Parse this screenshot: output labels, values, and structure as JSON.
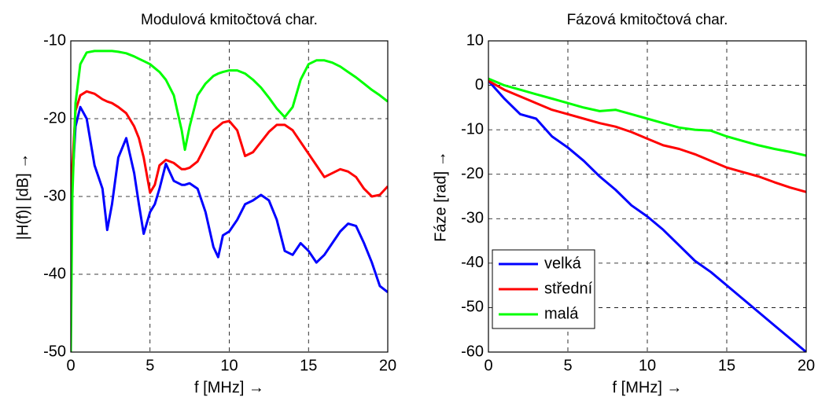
{
  "chart_data": [
    {
      "type": "line",
      "title": "Modulová kmitočtová char.",
      "xlabel": "f [MHz] →",
      "ylabel": "|H(f)| [dB] →",
      "x": [
        0,
        0.1,
        0.3,
        0.6,
        1,
        1.5,
        2,
        2.3,
        2.6,
        3,
        3.5,
        4,
        4.3,
        4.6,
        5,
        5.3,
        5.6,
        6,
        6.5,
        7,
        7.2,
        7.5,
        8,
        8.5,
        9,
        9.3,
        9.6,
        10,
        10.5,
        11,
        11.5,
        12,
        12.5,
        13,
        13.5,
        14,
        14.5,
        15,
        15.5,
        16,
        16.5,
        17,
        17.5,
        18,
        18.5,
        19,
        19.5,
        20
      ],
      "series": [
        {
          "color": "#0000ff",
          "values": [
            -35,
            -28,
            -21,
            -18.5,
            -20,
            -26,
            -29,
            -34.3,
            -31,
            -25,
            -22.5,
            -27,
            -31,
            -34.8,
            -32,
            -31,
            -29,
            -25.8,
            -28,
            -28.5,
            -28.5,
            -28.3,
            -29,
            -32,
            -36.5,
            -37.8,
            -35,
            -34.5,
            -33,
            -31,
            -30.5,
            -29.8,
            -30.5,
            -33,
            -37,
            -37.5,
            -36,
            -37,
            -38.5,
            -37.5,
            -36,
            -34.5,
            -33.5,
            -33.8,
            -36,
            -38.5,
            -41.5,
            -42.3
          ]
        },
        {
          "color": "#ff0000",
          "values": [
            -33,
            -26,
            -19,
            -17,
            -16.5,
            -16.8,
            -17.5,
            -17.8,
            -18,
            -18.5,
            -19.3,
            -21,
            -22.5,
            -25,
            -29.5,
            -28.5,
            -26,
            -25.3,
            -25.7,
            -26.5,
            -26.5,
            -26.3,
            -25.5,
            -23.5,
            -21.5,
            -21,
            -20.5,
            -20.3,
            -21.5,
            -24.8,
            -24.3,
            -23,
            -21.7,
            -20.8,
            -20.8,
            -21.5,
            -23,
            -24.5,
            -26,
            -27.5,
            -27,
            -26.5,
            -26.8,
            -27.5,
            -29,
            -30,
            -29.8,
            -28.7
          ]
        },
        {
          "color": "#00ff00",
          "values": [
            -50,
            -30,
            -18,
            -13,
            -11.5,
            -11.3,
            -11.3,
            -11.3,
            -11.3,
            -11.4,
            -11.6,
            -12,
            -12.3,
            -12.6,
            -13,
            -13.5,
            -14,
            -15,
            -17,
            -21.5,
            -24,
            -21,
            -17,
            -15.5,
            -14.5,
            -14.2,
            -14,
            -13.8,
            -13.8,
            -14.2,
            -15,
            -16,
            -17.3,
            -18.7,
            -19.8,
            -18.5,
            -15,
            -13,
            -12.5,
            -12.5,
            -12.8,
            -13.3,
            -14,
            -14.7,
            -15.5,
            -16.3,
            -17,
            -17.8
          ]
        }
      ],
      "xlim": [
        0,
        20
      ],
      "xticks": [
        0,
        5,
        10,
        15,
        20
      ],
      "ylim": [
        -50,
        -10
      ],
      "yticks": [
        -50,
        -40,
        -30,
        -20,
        -10
      ],
      "grid": true
    },
    {
      "type": "line",
      "title": "Fázová kmitočtová char.",
      "xlabel": "f [MHz] →",
      "ylabel": "Fáze [rad] →",
      "x": [
        0,
        1,
        2,
        3,
        4,
        5,
        6,
        7,
        8,
        9,
        10,
        11,
        12,
        13,
        14,
        15,
        16,
        17,
        18,
        19,
        20
      ],
      "series": [
        {
          "name": "velká",
          "color": "#0000ff",
          "values": [
            1,
            -3,
            -6.5,
            -7.5,
            -11.5,
            -14,
            -17,
            -20.5,
            -23.5,
            -27,
            -29.5,
            -32.5,
            -36,
            -39.5,
            -42,
            -45,
            -48,
            -51,
            -54,
            -57,
            -60
          ]
        },
        {
          "name": "střední",
          "color": "#ff0000",
          "values": [
            1,
            -1,
            -2.5,
            -4,
            -5.5,
            -6.5,
            -7.5,
            -8.5,
            -9.3,
            -10.5,
            -12,
            -13.5,
            -14.3,
            -15.5,
            -17,
            -18.5,
            -19.5,
            -20.5,
            -21.8,
            -23,
            -24
          ]
        },
        {
          "name": "malá",
          "color": "#00ff00",
          "values": [
            1.5,
            0,
            -1,
            -2,
            -3,
            -4,
            -5,
            -5.8,
            -5.5,
            -6.5,
            -7.5,
            -8.5,
            -9.5,
            -10,
            -10.2,
            -11.5,
            -12.5,
            -13.5,
            -14.3,
            -15,
            -15.8
          ]
        }
      ],
      "xlim": [
        0,
        20
      ],
      "xticks": [
        0,
        5,
        10,
        15,
        20
      ],
      "ylim": [
        -60,
        10
      ],
      "yticks": [
        -60,
        -50,
        -40,
        -30,
        -20,
        -10,
        0,
        10
      ],
      "grid": true,
      "legend": "lower left"
    }
  ]
}
